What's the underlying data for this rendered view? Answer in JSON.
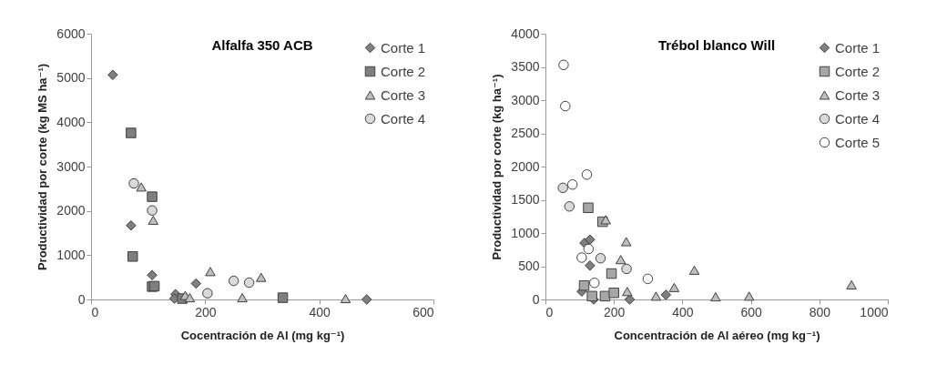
{
  "chart_data": [
    {
      "type": "scatter",
      "title": "Alfalfa 350 ACB",
      "xlabel": "Cocentración de Al (mg kg⁻¹)",
      "ylabel": "Productividad por corte (kg MS ha⁻¹)",
      "xlim": [
        0,
        600
      ],
      "xticks": [
        0,
        200,
        400,
        600
      ],
      "ylim": [
        0,
        6000
      ],
      "yticks": [
        0,
        1000,
        2000,
        3000,
        4000,
        5000,
        6000
      ],
      "legend": "top right",
      "grid": false,
      "series": [
        {
          "name": "Corte 1",
          "color": "#7f7f7f",
          "marker": "diamond",
          "x": [
            38,
            70,
            107,
            148,
            146,
            184,
            483
          ],
          "values": [
            5070,
            1670,
            550,
            120,
            20,
            360,
            0
          ]
        },
        {
          "name": "Corte 2",
          "color": "#7f7f7f",
          "marker": "square",
          "x": [
            70,
            73,
            107,
            107,
            111,
            160,
            336
          ],
          "values": [
            3760,
            970,
            2320,
            290,
            300,
            20,
            40
          ]
        },
        {
          "name": "Corte 3",
          "color": "#bfbfbf",
          "marker": "triangle",
          "x": [
            88,
            109,
            209,
            265,
            298,
            165,
            173,
            446
          ],
          "values": [
            2540,
            1790,
            630,
            40,
            500,
            90,
            40,
            20
          ]
        },
        {
          "name": "Corte 4",
          "color": "#d9d9d9",
          "marker": "circle",
          "x": [
            75,
            107,
            204,
            250,
            277
          ],
          "values": [
            2620,
            2010,
            140,
            420,
            380
          ]
        }
      ]
    },
    {
      "type": "scatter",
      "title": "Trébol blanco Will",
      "xlabel": "Concentración de Al aéreo (mg kg⁻¹)",
      "ylabel": "Productividad por corte (kg ha⁻¹)",
      "xlim": [
        0,
        1000
      ],
      "xticks": [
        0,
        200,
        400,
        600,
        800,
        1000
      ],
      "ylim": [
        0,
        4000
      ],
      "yticks": [
        0,
        500,
        1000,
        1500,
        2000,
        2500,
        3000,
        3500,
        4000
      ],
      "legend": "top right",
      "grid": false,
      "series": [
        {
          "name": "Corte 1",
          "color": "#7f7f7f",
          "marker": "diamond",
          "x": [
            114,
            130,
            130,
            106,
            141,
            246,
            352
          ],
          "values": [
            850,
            900,
            510,
            120,
            0,
            0,
            70
          ]
        },
        {
          "name": "Corte 2",
          "color": "#a6a6a6",
          "marker": "square",
          "x": [
            125,
            167,
            113,
            136,
            174,
            193,
            200
          ],
          "values": [
            1380,
            1170,
            210,
            50,
            50,
            390,
            100
          ]
        },
        {
          "name": "Corte 3",
          "color": "#bfbfbf",
          "marker": "triangle",
          "x": [
            176,
            236,
            220,
            239,
            323,
            376,
            435,
            497,
            595,
            894
          ],
          "values": [
            1200,
            870,
            600,
            120,
            50,
            180,
            440,
            40,
            50,
            220
          ]
        },
        {
          "name": "Corte 4",
          "color": "#d9d9d9",
          "marker": "circle",
          "x": [
            51,
            70,
            161,
            237
          ],
          "values": [
            1680,
            1400,
            620,
            460
          ]
        },
        {
          "name": "Corte 5",
          "color": "#ffffff",
          "marker": "circle",
          "x": [
            53,
            58,
            79,
            121,
            106,
            126,
            143,
            299
          ],
          "values": [
            3530,
            2910,
            1730,
            1880,
            630,
            760,
            250,
            310
          ]
        }
      ]
    }
  ]
}
